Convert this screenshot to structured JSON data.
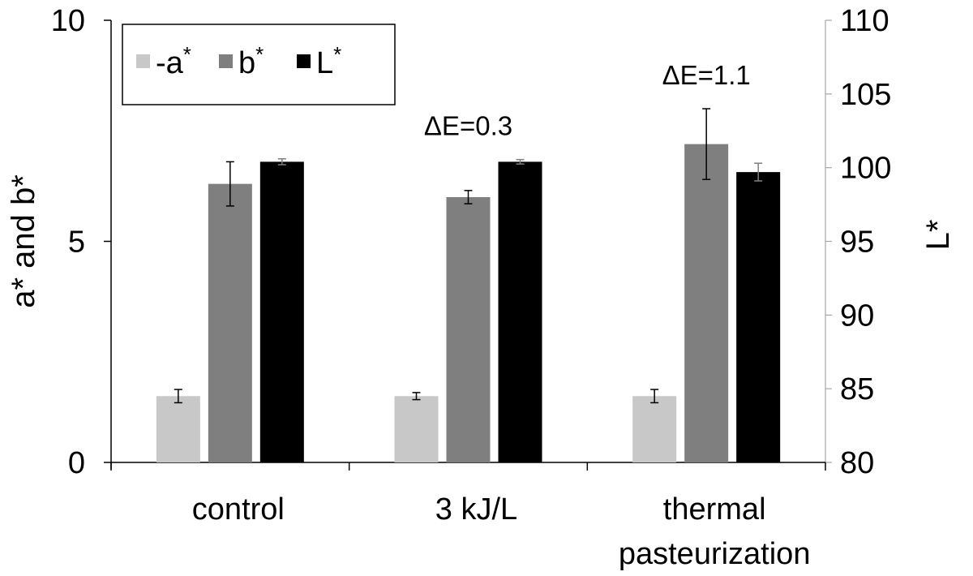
{
  "chart_data": {
    "type": "bar",
    "categories": [
      [
        "control"
      ],
      [
        "3 kJ/L"
      ],
      [
        "thermal",
        "pasteurization"
      ]
    ],
    "left_axis": {
      "label": "a* and b*",
      "ylim": [
        0,
        10
      ],
      "ticks": [
        "0",
        "5",
        "10"
      ],
      "tick_values": [
        0,
        5,
        10
      ]
    },
    "right_axis": {
      "label": "L*",
      "ylim": [
        80,
        110
      ],
      "ticks": [
        "80",
        "85",
        "90",
        "95",
        "100",
        "105",
        "110"
      ],
      "tick_values": [
        80,
        85,
        90,
        95,
        100,
        105,
        110
      ]
    },
    "series": [
      {
        "name": "-a*",
        "axis": "left",
        "color": "#c8c8c8",
        "values": [
          1.5,
          1.5,
          1.5
        ],
        "errors": [
          0.15,
          0.08,
          0.15
        ]
      },
      {
        "name": "b*",
        "axis": "left",
        "color": "#7f7f7f",
        "values": [
          6.3,
          6.0,
          7.2
        ],
        "errors": [
          0.5,
          0.15,
          0.8
        ]
      },
      {
        "name": "L*",
        "axis": "right",
        "color": "#000000",
        "values": [
          100.4,
          100.4,
          99.7
        ],
        "errors": [
          0.2,
          0.15,
          0.6
        ]
      }
    ],
    "annotations": [
      {
        "text": "ΔE=0.3",
        "category_index": 1
      },
      {
        "text": "ΔE=1.1",
        "category_index": 2
      }
    ],
    "legend": {
      "placement": "top-left",
      "items": [
        {
          "base": "-a",
          "sup": "*"
        },
        {
          "base": "b",
          "sup": "*"
        },
        {
          "base": "L",
          "sup": "*"
        }
      ]
    },
    "grid": false
  }
}
